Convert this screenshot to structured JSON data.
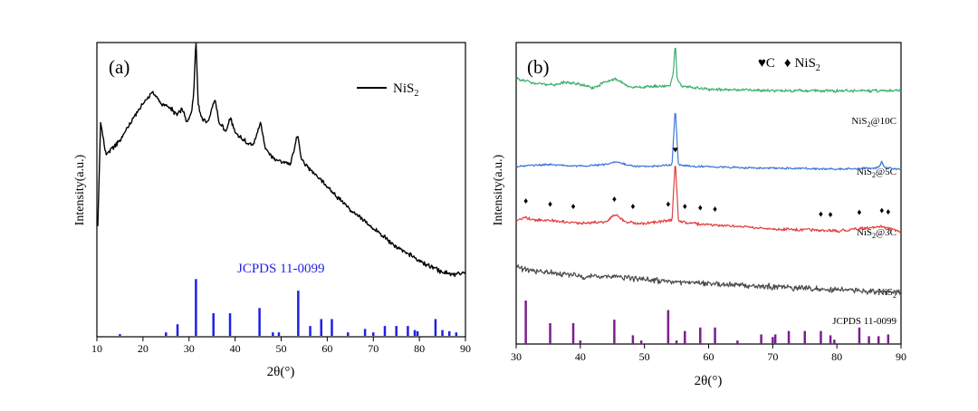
{
  "chart_data": [
    {
      "type": "line",
      "panel_label": "(a)",
      "xlabel": "2θ(°)",
      "ylabel": "Intensity(a.u.)",
      "xlim": [
        10,
        90
      ],
      "xticks": [
        10,
        20,
        30,
        40,
        50,
        60,
        70,
        80,
        90
      ],
      "tick_labels": [
        "10",
        "20",
        "30",
        "40",
        "50",
        "60",
        "70",
        "80",
        "90"
      ],
      "legend": {
        "base": "NiS",
        "sub": "2",
        "position": "top-right"
      },
      "series": [
        {
          "name": "NiS2",
          "color": "#000000",
          "x": [
            10.2,
            10.8,
            12,
            15,
            18,
            20,
            22,
            24,
            26,
            27.5,
            28.5,
            29.5,
            30.5,
            31,
            31.5,
            32,
            32.7,
            34,
            35,
            35.6,
            36.5,
            38,
            39,
            40,
            42,
            44,
            45.5,
            46.5,
            48,
            50,
            52,
            53,
            53.6,
            54.3,
            56,
            58,
            60,
            65,
            70,
            75,
            80,
            85,
            88,
            90
          ],
          "y": [
            0.35,
            0.8,
            0.66,
            0.72,
            0.82,
            0.88,
            0.93,
            0.88,
            0.86,
            0.83,
            0.86,
            0.8,
            0.84,
            0.92,
            1.16,
            0.88,
            0.82,
            0.8,
            0.86,
            0.9,
            0.8,
            0.76,
            0.82,
            0.75,
            0.72,
            0.7,
            0.8,
            0.69,
            0.65,
            0.63,
            0.62,
            0.7,
            0.75,
            0.64,
            0.6,
            0.56,
            0.52,
            0.42,
            0.34,
            0.26,
            0.2,
            0.15,
            0.14,
            0.15
          ]
        }
      ],
      "reference": {
        "label": "JCPDS 11-0099",
        "color": "#1f1fe8",
        "positions": [
          15,
          25,
          27.5,
          31.5,
          35.3,
          38.9,
          45.3,
          48.2,
          49.5,
          53.7,
          56.3,
          58.7,
          61,
          64.5,
          68.2,
          70,
          72.5,
          75,
          77.5,
          79,
          79.6,
          83.5,
          85,
          86.5,
          88
        ],
        "intensities": [
          0.03,
          0.06,
          0.2,
          0.98,
          0.39,
          0.39,
          0.48,
          0.06,
          0.06,
          0.78,
          0.17,
          0.29,
          0.29,
          0.06,
          0.12,
          0.06,
          0.17,
          0.17,
          0.17,
          0.1,
          0.08,
          0.29,
          0.1,
          0.08,
          0.06
        ]
      }
    },
    {
      "type": "line",
      "panel_label": "(b)",
      "xlabel": "2θ(°)",
      "ylabel": "Intensity(a.u.)",
      "xlim": [
        30,
        90
      ],
      "xticks": [
        30,
        40,
        50,
        60,
        70,
        80,
        90
      ],
      "tick_labels": [
        "30",
        "40",
        "50",
        "60",
        "70",
        "80",
        "90"
      ],
      "legend": {
        "c_marker": "♥",
        "c_label": "C",
        "nis2_marker": "♦",
        "nis2_base": "NiS",
        "nis2_sub": "2",
        "position": "top"
      },
      "series": [
        {
          "name": "NiS2@10C",
          "base": "NiS",
          "sub": "2",
          "suffix": "@10C",
          "color": "#3daf6c",
          "baseline": 0.84,
          "noise": 0.006,
          "x": [
            30,
            33,
            36,
            38,
            42,
            44,
            45.5,
            48,
            51,
            54,
            54.5,
            54.8,
            55.1,
            55.8,
            60,
            70,
            80,
            90
          ],
          "y": [
            0.04,
            0.025,
            0.02,
            0.03,
            0.01,
            0.03,
            0.04,
            0.01,
            0.015,
            0.015,
            0.06,
            0.16,
            0.04,
            0.015,
            0.005,
            0.0,
            0.0,
            0.0
          ]
        },
        {
          "name": "NiS2@5C",
          "base": "NiS",
          "sub": "2",
          "suffix": "@5C",
          "color": "#3c78d8",
          "baseline": 0.585,
          "noise": 0.004,
          "x": [
            30,
            35,
            40,
            44,
            45.5,
            48,
            52,
            54.3,
            54.8,
            55.3,
            57,
            65,
            80,
            86.5,
            87,
            87.5,
            90
          ],
          "y": [
            0.005,
            0.01,
            0.005,
            0.01,
            0.02,
            0.005,
            0.005,
            0.01,
            0.2,
            0.01,
            0.005,
            0.0,
            -0.005,
            0.0,
            0.02,
            0.0,
            -0.005
          ]
        },
        {
          "name": "NiS2@3C",
          "base": "NiS",
          "sub": "2",
          "suffix": "@3C",
          "color": "#e04040",
          "baseline": 0.39,
          "noise": 0.006,
          "x": [
            30,
            31.5,
            33,
            35.3,
            38,
            40,
            44,
            45.5,
            47,
            50,
            53.7,
            54.3,
            54.8,
            55.3,
            56.3,
            60,
            65,
            70,
            75,
            80,
            87.2,
            90
          ],
          "y": [
            0.02,
            0.03,
            0.02,
            0.02,
            0.015,
            0.01,
            0.015,
            0.04,
            0.015,
            0.01,
            0.02,
            0.02,
            0.22,
            0.02,
            0.012,
            0.005,
            0.0,
            -0.01,
            -0.01,
            -0.015,
            0.0,
            -0.02
          ]
        },
        {
          "name": "NiS2",
          "base": "NiS",
          "sub": "2",
          "suffix": "",
          "color": "#4a4a4a",
          "baseline": 0.195,
          "noise": 0.012,
          "x": [
            30,
            33,
            36,
            40,
            45,
            50,
            55,
            60,
            70,
            80,
            90
          ],
          "y": [
            0.06,
            0.045,
            0.04,
            0.03,
            0.03,
            0.02,
            0.01,
            0.005,
            -0.005,
            -0.015,
            -0.025
          ]
        }
      ],
      "markers": {
        "heart": [
          54.8
        ],
        "diamond": [
          31.5,
          35.3,
          38.9,
          45.3,
          48.2,
          53.7,
          56.3,
          58.7,
          61,
          77.5,
          79,
          83.5,
          87,
          88
        ]
      },
      "reference": {
        "label": "JCPDS 11-0099",
        "color": "#7b1f8c",
        "positions": [
          31.5,
          35.3,
          38.9,
          40,
          45.3,
          48.2,
          49.5,
          53.7,
          55,
          56.3,
          58.7,
          61,
          64.5,
          68.2,
          70,
          70.4,
          72.5,
          75,
          77.5,
          79,
          79.6,
          83.5,
          85,
          86.5,
          88
        ],
        "intensities": [
          1.0,
          0.48,
          0.48,
          0.08,
          0.56,
          0.2,
          0.08,
          0.78,
          0.08,
          0.3,
          0.38,
          0.38,
          0.08,
          0.22,
          0.16,
          0.22,
          0.3,
          0.3,
          0.3,
          0.2,
          0.1,
          0.38,
          0.18,
          0.18,
          0.22
        ]
      }
    }
  ]
}
